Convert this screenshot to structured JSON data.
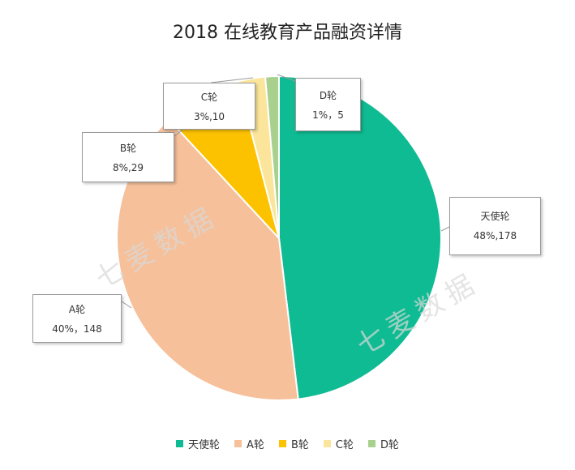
{
  "chart_data": {
    "type": "pie",
    "title": "2018 在线教育产品融资详情",
    "slices": [
      {
        "name": "天使轮",
        "value": 178,
        "label": "48%,178",
        "color": "#0fbb92"
      },
      {
        "name": "A轮",
        "value": 148,
        "label": "40%，148",
        "color": "#f6c09a"
      },
      {
        "name": "B轮",
        "value": 29,
        "label": "8%,29",
        "color": "#fcc200"
      },
      {
        "name": "C轮",
        "value": 10,
        "label": "3%,10",
        "color": "#fbe59a"
      },
      {
        "name": "D轮",
        "value": 5,
        "label": "1%，5",
        "color": "#a9d18e"
      }
    ],
    "legend_position": "bottom"
  },
  "watermark": {
    "text": "七麦数据"
  }
}
